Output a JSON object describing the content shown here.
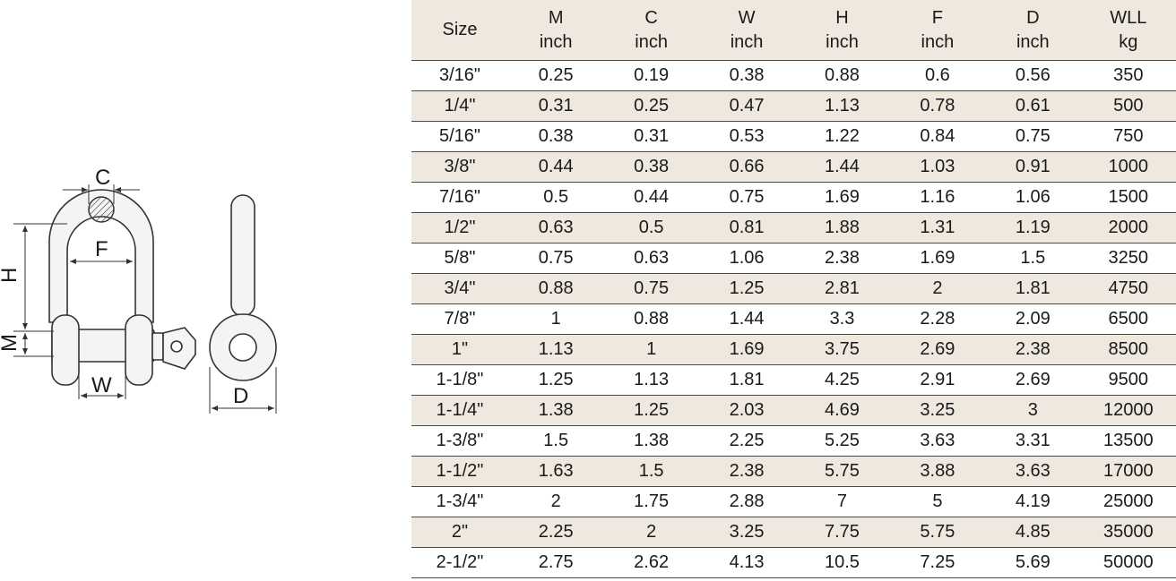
{
  "diagram": {
    "labels": {
      "c": "C",
      "f": "F",
      "h": "H",
      "m": "M",
      "w": "W",
      "d": "D"
    }
  },
  "table": {
    "headers": [
      [
        "Size",
        ""
      ],
      [
        "M",
        "inch"
      ],
      [
        "C",
        "inch"
      ],
      [
        "W",
        "inch"
      ],
      [
        "H",
        "inch"
      ],
      [
        "F",
        "inch"
      ],
      [
        "D",
        "inch"
      ],
      [
        "WLL",
        "kg"
      ]
    ],
    "rows": [
      [
        "3/16\"",
        "0.25",
        "0.19",
        "0.38",
        "0.88",
        "0.6",
        "0.56",
        "350"
      ],
      [
        "1/4\"",
        "0.31",
        "0.25",
        "0.47",
        "1.13",
        "0.78",
        "0.61",
        "500"
      ],
      [
        "5/16\"",
        "0.38",
        "0.31",
        "0.53",
        "1.22",
        "0.84",
        "0.75",
        "750"
      ],
      [
        "3/8\"",
        "0.44",
        "0.38",
        "0.66",
        "1.44",
        "1.03",
        "0.91",
        "1000"
      ],
      [
        "7/16\"",
        "0.5",
        "0.44",
        "0.75",
        "1.69",
        "1.16",
        "1.06",
        "1500"
      ],
      [
        "1/2\"",
        "0.63",
        "0.5",
        "0.81",
        "1.88",
        "1.31",
        "1.19",
        "2000"
      ],
      [
        "5/8\"",
        "0.75",
        "0.63",
        "1.06",
        "2.38",
        "1.69",
        "1.5",
        "3250"
      ],
      [
        "3/4\"",
        "0.88",
        "0.75",
        "1.25",
        "2.81",
        "2",
        "1.81",
        "4750"
      ],
      [
        "7/8\"",
        "1",
        "0.88",
        "1.44",
        "3.3",
        "2.28",
        "2.09",
        "6500"
      ],
      [
        "1\"",
        "1.13",
        "1",
        "1.69",
        "3.75",
        "2.69",
        "2.38",
        "8500"
      ],
      [
        "1-1/8\"",
        "1.25",
        "1.13",
        "1.81",
        "4.25",
        "2.91",
        "2.69",
        "9500"
      ],
      [
        "1-1/4\"",
        "1.38",
        "1.25",
        "2.03",
        "4.69",
        "3.25",
        "3",
        "12000"
      ],
      [
        "1-3/8\"",
        "1.5",
        "1.38",
        "2.25",
        "5.25",
        "3.63",
        "3.31",
        "13500"
      ],
      [
        "1-1/2\"",
        "1.63",
        "1.5",
        "2.38",
        "5.75",
        "3.88",
        "3.63",
        "17000"
      ],
      [
        "1-3/4\"",
        "2",
        "1.75",
        "2.88",
        "7",
        "5",
        "4.19",
        "25000"
      ],
      [
        "2\"",
        "2.25",
        "2",
        "3.25",
        "7.75",
        "5.75",
        "4.85",
        "35000"
      ],
      [
        "2-1/2\"",
        "2.75",
        "2.62",
        "4.13",
        "10.5",
        "7.25",
        "5.69",
        "50000"
      ]
    ]
  }
}
